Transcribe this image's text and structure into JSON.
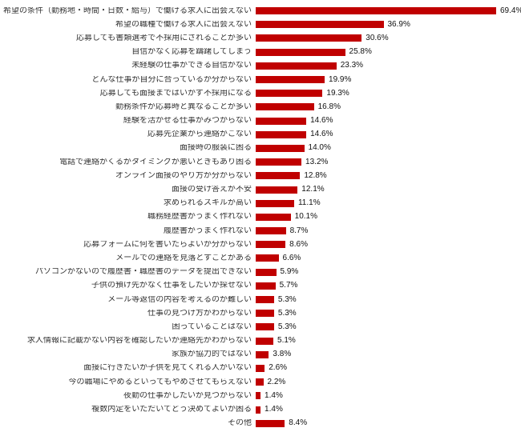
{
  "chart_data": {
    "type": "bar",
    "orientation": "horizontal",
    "title": "",
    "xlabel": "",
    "ylabel": "",
    "xlim": [
      0,
      70
    ],
    "grid": false,
    "legend": false,
    "bar_color": "#c00000",
    "value_suffix": "%",
    "categories": [
      "希望の条件（勤務地・時間・日数・給与）で働ける求人に出会えない",
      "希望の職種で働ける求人に出会えない",
      "応募しても書類選考で不採用にされることが多い",
      "自信がなく応募を躊躇してしまう",
      "未経験の仕事ができる自信がない",
      "どんな仕事が自分に合っているか分からない",
      "応募しても面接まではいかず不採用になる",
      "勤務条件が応募時と異なることが多い",
      "経験を活かせる仕事がみつからない",
      "応募先企業から連絡がこない",
      "面接時の服装に困る",
      "電話で連絡がくるがタイミングが悪いときもあり困る",
      "オンライン面接のやり方が分からない",
      "面接の受け答えが不安",
      "求められるスキルが高い",
      "職務経歴書がうまく作れない",
      "履歴書がうまく作れない",
      "応募フォームに何を書いたらよいか分からない",
      "メールでの連絡を見落とすことがある",
      "パソコンがないので履歴書・職歴書のデータを提出できない",
      "子供の預け先がなく仕事をしたいが探せない",
      "メール等返信の内容を考えるのが難しい",
      "仕事の見つけ方がわからない",
      "困っていることはない",
      "求人情報に記載がない内容を確認したいが連絡先がわからない",
      "家族が協力的ではない",
      "面接に行きたいが子供を見てくれる人がいない",
      "今の職場にやめるといってもやめさせてもらえない",
      "夜勤の仕事がしたいが見つからない",
      "複数内定をいただいてどう決めてよいか困る",
      "その他"
    ],
    "values": [
      69.4,
      36.9,
      30.6,
      25.8,
      23.3,
      19.9,
      19.3,
      16.8,
      14.6,
      14.6,
      14.0,
      13.2,
      12.8,
      12.1,
      11.1,
      10.1,
      8.7,
      8.6,
      6.6,
      5.9,
      5.7,
      5.3,
      5.3,
      5.3,
      5.1,
      3.8,
      2.6,
      2.2,
      1.4,
      1.4,
      8.4
    ]
  }
}
